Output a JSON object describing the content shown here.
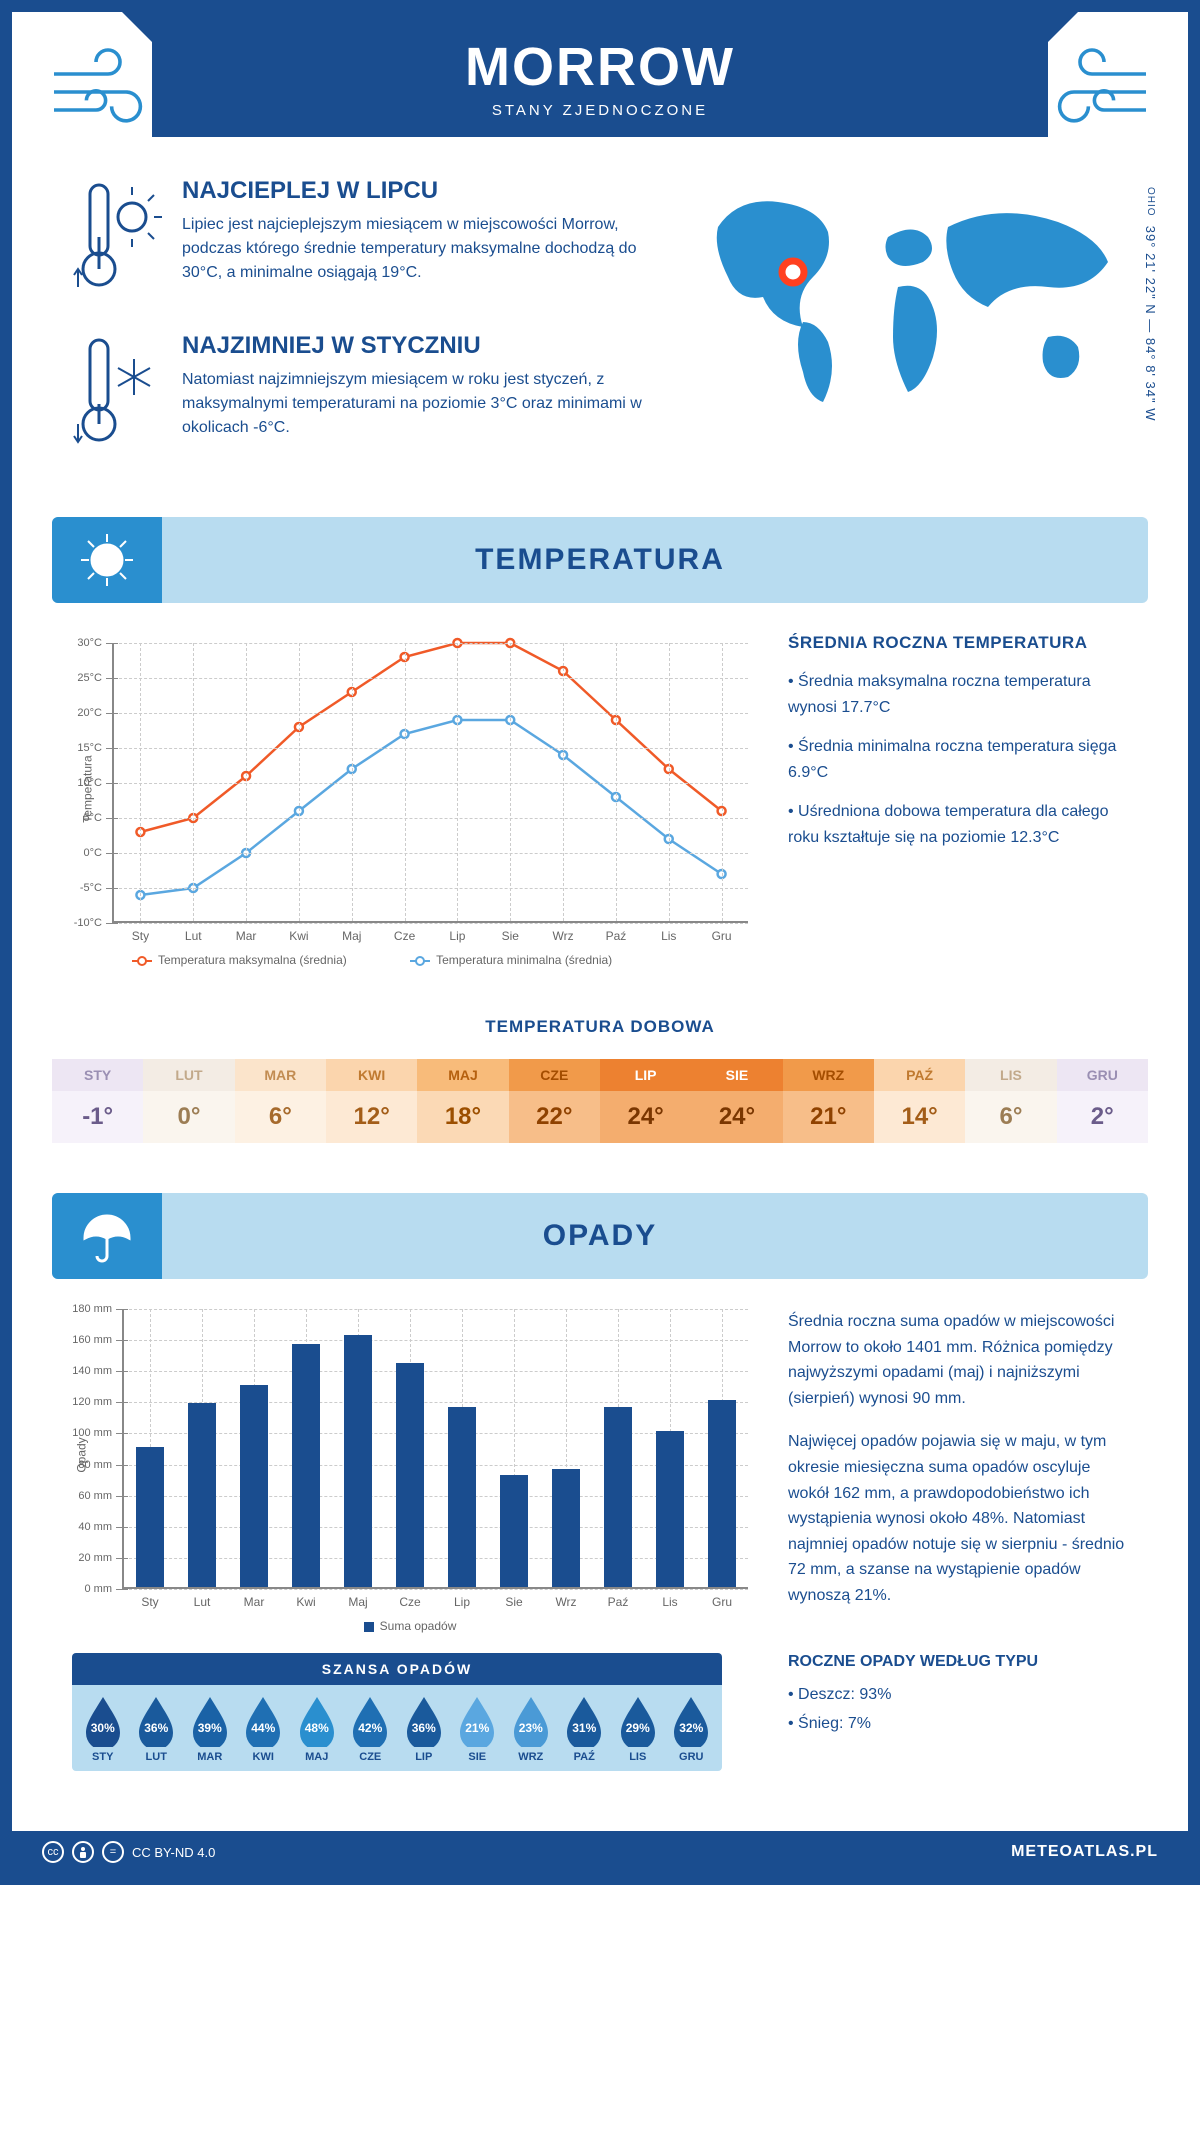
{
  "header": {
    "title": "MORROW",
    "subtitle": "STANY ZJEDNOCZONE"
  },
  "location": {
    "state": "OHIO",
    "coords": "39° 21' 22\" N — 84° 8' 34\" W"
  },
  "facts": {
    "hot": {
      "title": "NAJCIEPLEJ W LIPCU",
      "text": "Lipiec jest najcieplejszym miesiącem w miejscowości Morrow, podczas którego średnie temperatury maksymalne dochodzą do 30°C, a minimalne osiągają 19°C."
    },
    "cold": {
      "title": "NAJZIMNIEJ W STYCZNIU",
      "text": "Natomiast najzimniejszym miesiącem w roku jest styczeń, z maksymalnymi temperaturami na poziomie 3°C oraz minimami w okolicach -6°C."
    }
  },
  "colors": {
    "primary": "#1a4d8f",
    "accent": "#2a8fcf",
    "lightblue": "#b8dcf0",
    "orange": "#f05a28",
    "blueLine": "#5aa7e0"
  },
  "temperature": {
    "section_title": "TEMPERATURA",
    "info_title": "ŚREDNIA ROCZNA TEMPERATURA",
    "bullets": [
      "• Średnia maksymalna roczna temperatura wynosi 17.7°C",
      "• Średnia minimalna roczna temperatura sięga 6.9°C",
      "• Uśredniona dobowa temperatura dla całego roku kształtuje się na poziomie 12.3°C"
    ],
    "chart": {
      "type": "line",
      "xlabels": [
        "Sty",
        "Lut",
        "Mar",
        "Kwi",
        "Maj",
        "Cze",
        "Lip",
        "Sie",
        "Wrz",
        "Paź",
        "Lis",
        "Gru"
      ],
      "ylim": [
        -10,
        30
      ],
      "ytick_step": 5,
      "ylabel": "Temperatura",
      "yformat": "°C",
      "max_series": {
        "color": "#f05a28",
        "label": "Temperatura maksymalna (średnia)",
        "values": [
          3,
          5,
          11,
          18,
          23,
          28,
          30,
          30,
          26,
          19,
          12,
          6
        ]
      },
      "min_series": {
        "color": "#5aa7e0",
        "label": "Temperatura minimalna (średnia)",
        "values": [
          -6,
          -5,
          0,
          6,
          12,
          17,
          19,
          19,
          14,
          8,
          2,
          -3
        ]
      }
    },
    "daily": {
      "title": "TEMPERATURA DOBOWA",
      "months": [
        "STY",
        "LUT",
        "MAR",
        "KWI",
        "MAJ",
        "CZE",
        "LIP",
        "SIE",
        "WRZ",
        "PAŹ",
        "LIS",
        "GRU"
      ],
      "values": [
        "-1°",
        "0°",
        "6°",
        "12°",
        "18°",
        "22°",
        "24°",
        "24°",
        "21°",
        "14°",
        "6°",
        "2°"
      ],
      "header_bg": [
        "#ede6f3",
        "#f3ece4",
        "#fbe4cb",
        "#fbd5ad",
        "#f8bb7a",
        "#f19a4a",
        "#ed8130",
        "#ed8130",
        "#f19a4a",
        "#fbd5ad",
        "#f3ece4",
        "#ede6f3"
      ],
      "header_fg": [
        "#9a8fb3",
        "#c2a98a",
        "#c28c52",
        "#c07a30",
        "#b5600f",
        "#a44d00",
        "#ffffff",
        "#ffffff",
        "#a44d00",
        "#c07a30",
        "#c2a98a",
        "#9a8fb3"
      ],
      "value_bg": [
        "#f6f2fa",
        "#faf5ee",
        "#fdf1e3",
        "#fde9d4",
        "#fbd9b5",
        "#f7be89",
        "#f4ad6e",
        "#f4ad6e",
        "#f7be89",
        "#fde9d4",
        "#faf5ee",
        "#f6f2fa"
      ],
      "value_fg": [
        "#6b5c8a",
        "#9c7d54",
        "#a66a2c",
        "#a35d18",
        "#9c4f00",
        "#8f4200",
        "#7a3600",
        "#7a3600",
        "#8f4200",
        "#a35d18",
        "#9c7d54",
        "#6b5c8a"
      ]
    }
  },
  "precip": {
    "section_title": "OPADY",
    "para1": "Średnia roczna suma opadów w miejscowości Morrow to około 1401 mm. Różnica pomiędzy najwyższymi opadami (maj) i najniższymi (sierpień) wynosi 90 mm.",
    "para2": "Najwięcej opadów pojawia się w maju, w tym okresie miesięczna suma opadów oscyluje wokół 162 mm, a prawdopodobieństwo ich wystąpienia wynosi około 48%. Natomiast najmniej opadów notuje się w sierpniu - średnio 72 mm, a szanse na wystąpienie opadów wynoszą 21%.",
    "chart": {
      "type": "bar",
      "xlabels": [
        "Sty",
        "Lut",
        "Mar",
        "Kwi",
        "Maj",
        "Cze",
        "Lip",
        "Sie",
        "Wrz",
        "Paź",
        "Lis",
        "Gru"
      ],
      "ylabel": "Opady",
      "ylim": [
        0,
        180
      ],
      "ytick_step": 20,
      "yformat": " mm",
      "bar_color": "#1a4d8f",
      "values": [
        90,
        118,
        130,
        156,
        162,
        144,
        116,
        72,
        76,
        116,
        100,
        120
      ],
      "legend": "Suma opadów"
    },
    "chance": {
      "title": "SZANSA OPADÓW",
      "months": [
        "STY",
        "LUT",
        "MAR",
        "KWI",
        "MAJ",
        "CZE",
        "LIP",
        "SIE",
        "WRZ",
        "PAŹ",
        "LIS",
        "GRU"
      ],
      "values": [
        "30%",
        "36%",
        "39%",
        "44%",
        "48%",
        "42%",
        "36%",
        "21%",
        "23%",
        "31%",
        "29%",
        "32%"
      ],
      "drop_colors": [
        "#1a4d8f",
        "#1a5a9c",
        "#1a62a6",
        "#1f6fb3",
        "#2a8fcf",
        "#1f6fb3",
        "#1a5a9c",
        "#5aa7e0",
        "#4a9ad6",
        "#1a5a9c",
        "#1a5a9c",
        "#1a5a9c"
      ]
    },
    "type": {
      "title": "ROCZNE OPADY WEDŁUG TYPU",
      "items": [
        "• Deszcz: 93%",
        "• Śnieg: 7%"
      ]
    }
  },
  "footer": {
    "license": "CC BY-ND 4.0",
    "site": "METEOATLAS.PL"
  }
}
